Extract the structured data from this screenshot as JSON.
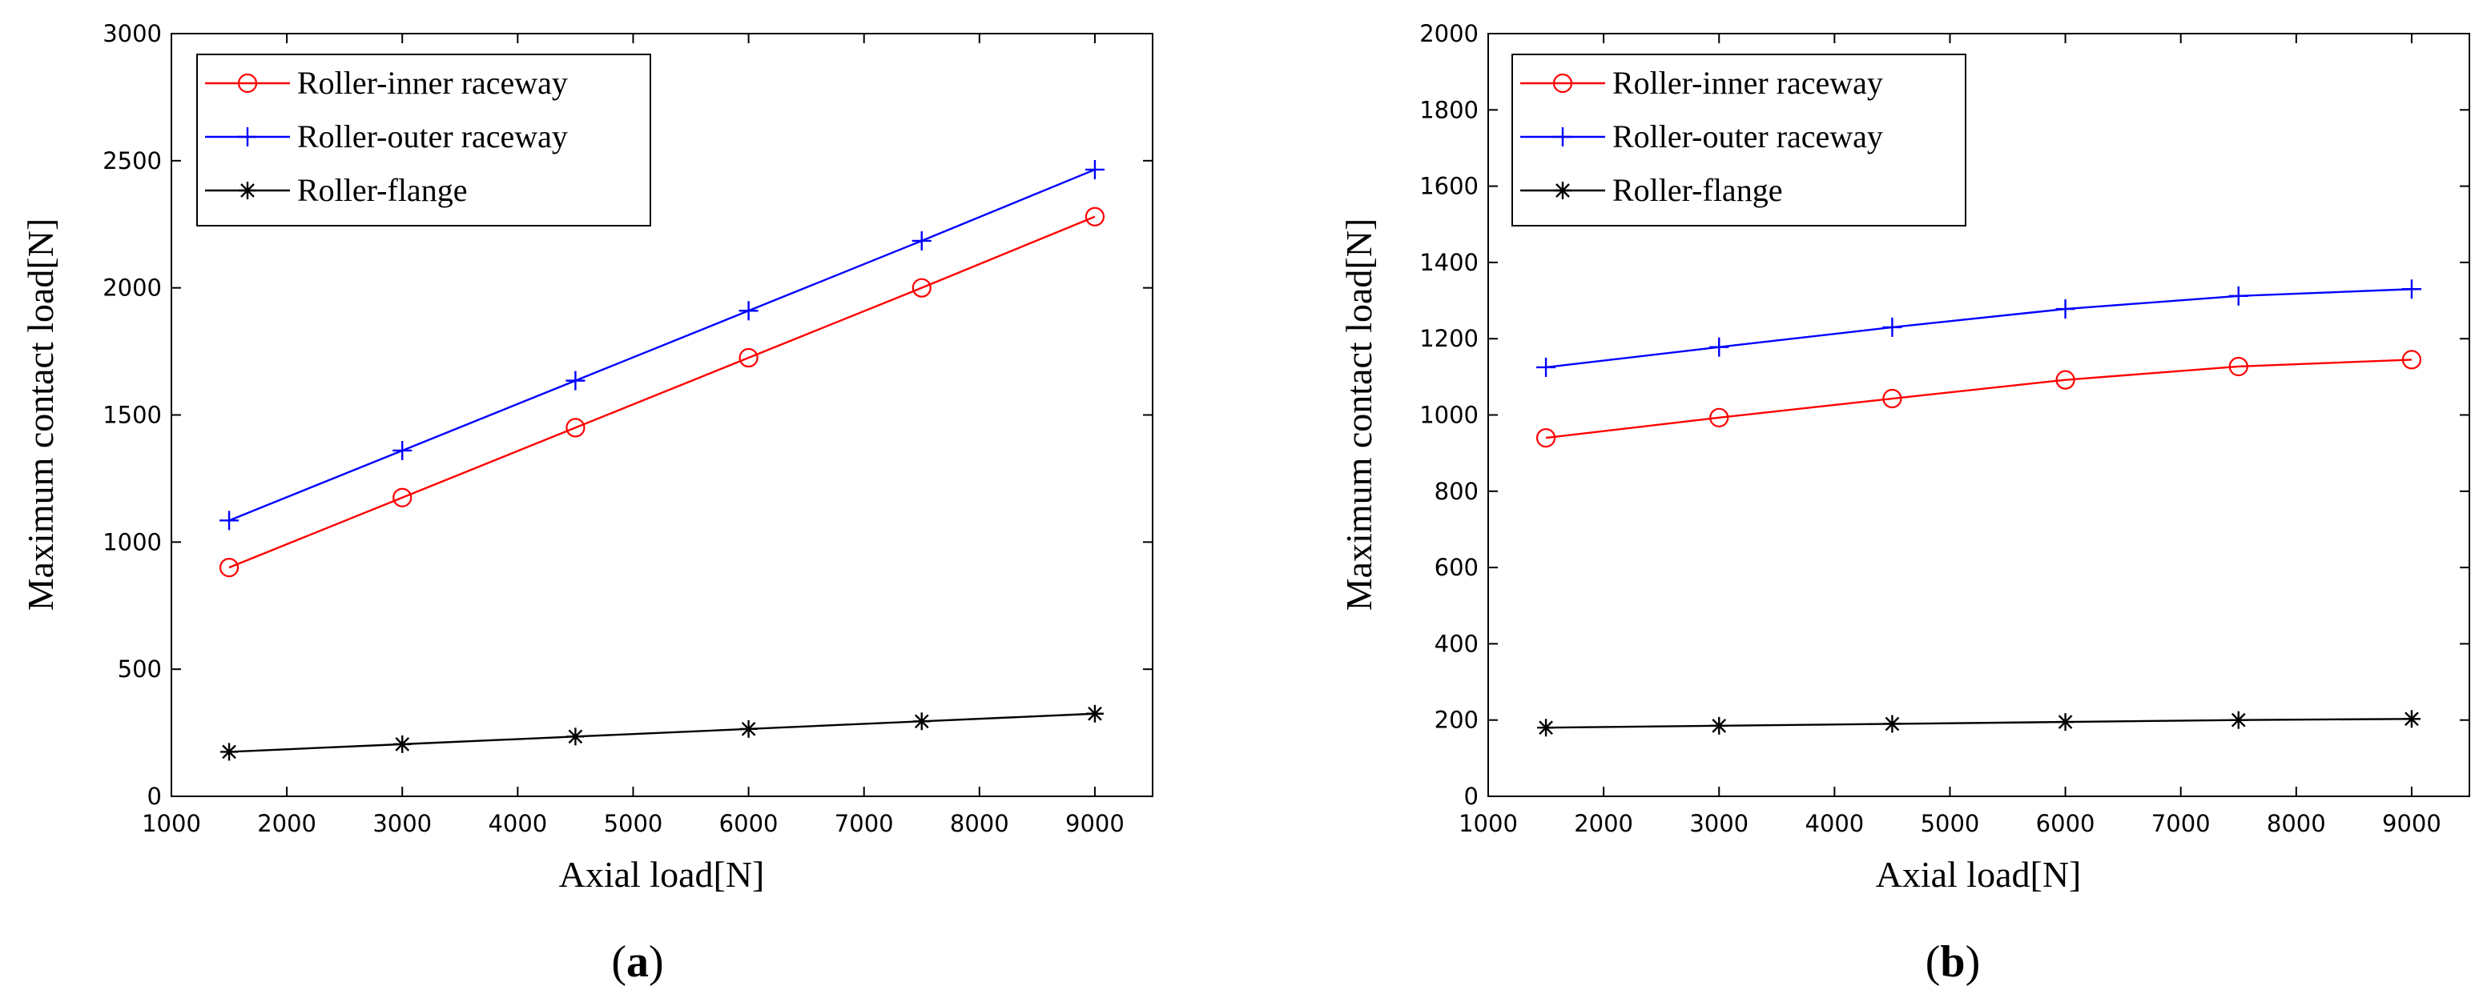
{
  "chart_data": [
    {
      "type": "line",
      "panel": "a",
      "title": "",
      "xlabel": "Axial load[N]",
      "ylabel": "Maximum contact load[N]",
      "xlim": [
        1000,
        9500
      ],
      "ylim": [
        0,
        3000
      ],
      "xticks": [
        1000,
        2000,
        3000,
        4000,
        5000,
        6000,
        7000,
        8000,
        9000
      ],
      "yticks": [
        0,
        500,
        1000,
        1500,
        2000,
        2500,
        3000
      ],
      "x": [
        1500,
        3000,
        4500,
        6000,
        7500,
        9000
      ],
      "legend_position": "top-left",
      "grid": false,
      "series": [
        {
          "name": "Roller-inner raceway",
          "color": "#ff0000",
          "marker": "circle",
          "values": [
            900,
            1175,
            1450,
            1725,
            2000,
            2280
          ]
        },
        {
          "name": "Roller-outer raceway",
          "color": "#0000ff",
          "marker": "plus",
          "values": [
            1085,
            1360,
            1635,
            1910,
            2185,
            2465
          ]
        },
        {
          "name": "Roller-flange",
          "color": "#000000",
          "marker": "asterisk",
          "values": [
            175,
            205,
            235,
            265,
            295,
            325
          ]
        }
      ]
    },
    {
      "type": "line",
      "panel": "b",
      "title": "",
      "xlabel": "Axial load[N]",
      "ylabel": "Maximum contact load[N]",
      "xlim": [
        1000,
        9500
      ],
      "ylim": [
        0,
        2000
      ],
      "xticks": [
        1000,
        2000,
        3000,
        4000,
        5000,
        6000,
        7000,
        8000,
        9000
      ],
      "yticks": [
        0,
        200,
        400,
        600,
        800,
        1000,
        1200,
        1400,
        1600,
        1800,
        2000
      ],
      "x": [
        1500,
        3000,
        4500,
        6000,
        7500,
        9000
      ],
      "legend_position": "top-left",
      "grid": false,
      "series": [
        {
          "name": "Roller-inner raceway",
          "color": "#ff0000",
          "marker": "circle",
          "values": [
            940,
            993,
            1043,
            1092,
            1127,
            1145
          ]
        },
        {
          "name": "Roller-outer raceway",
          "color": "#0000ff",
          "marker": "plus",
          "values": [
            1125,
            1178,
            1230,
            1278,
            1312,
            1330
          ]
        },
        {
          "name": "Roller-flange",
          "color": "#000000",
          "marker": "asterisk",
          "values": [
            180,
            185,
            190,
            195,
            200,
            203
          ]
        }
      ]
    }
  ],
  "captions": [
    {
      "open": "(",
      "label": "a",
      "close": ")"
    },
    {
      "open": "(",
      "label": "b",
      "close": ")"
    }
  ]
}
